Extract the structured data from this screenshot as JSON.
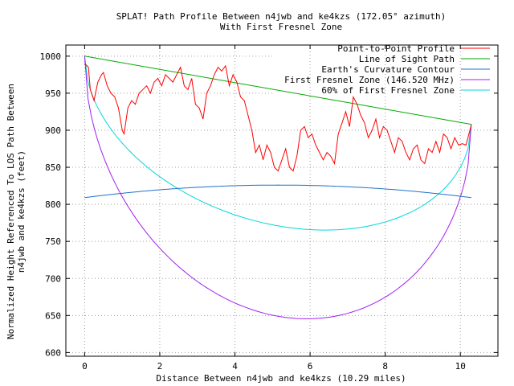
{
  "chart_data": {
    "type": "line",
    "title": "SPLAT! Path Profile Between n4jwb and ke4kzs (172.05° azimuth)",
    "subtitle": "With First Fresnel Zone",
    "xlabel": "Distance Between n4jwb and ke4kzs (10.29 miles)",
    "ylabel_line1": "Normalized Height Referenced To LOS Path Between",
    "ylabel_line2": "n4jwb and ke4kzs (feet)",
    "xlim": [
      -0.5,
      11
    ],
    "ylim": [
      595,
      1015
    ],
    "xticks": [
      0,
      2,
      4,
      6,
      8,
      10
    ],
    "yticks": [
      600,
      650,
      700,
      750,
      800,
      850,
      900,
      950,
      1000
    ],
    "grid": true,
    "legend_position": "top-right",
    "path_length_miles": 10.29,
    "series": [
      {
        "name": "Point-to-Point Profile",
        "color": "#ff0000",
        "x": [
          0.0,
          0.1,
          0.15,
          0.25,
          0.35,
          0.45,
          0.5,
          0.6,
          0.7,
          0.8,
          0.9,
          1.0,
          1.05,
          1.15,
          1.25,
          1.35,
          1.45,
          1.55,
          1.65,
          1.75,
          1.85,
          1.95,
          2.05,
          2.15,
          2.25,
          2.35,
          2.45,
          2.55,
          2.65,
          2.75,
          2.85,
          2.95,
          3.05,
          3.15,
          3.25,
          3.35,
          3.45,
          3.55,
          3.65,
          3.75,
          3.85,
          3.95,
          4.05,
          4.15,
          4.25,
          4.35,
          4.45,
          4.55,
          4.65,
          4.75,
          4.85,
          4.95,
          5.05,
          5.15,
          5.25,
          5.35,
          5.45,
          5.55,
          5.65,
          5.75,
          5.85,
          5.95,
          6.05,
          6.15,
          6.25,
          6.35,
          6.45,
          6.55,
          6.65,
          6.75,
          6.85,
          6.95,
          7.05,
          7.15,
          7.25,
          7.35,
          7.45,
          7.55,
          7.65,
          7.75,
          7.85,
          7.95,
          8.05,
          8.15,
          8.25,
          8.35,
          8.45,
          8.55,
          8.65,
          8.75,
          8.85,
          8.95,
          9.05,
          9.15,
          9.25,
          9.35,
          9.45,
          9.55,
          9.65,
          9.75,
          9.85,
          9.95,
          10.05,
          10.15,
          10.29
        ],
        "y": [
          990,
          985,
          955,
          940,
          965,
          975,
          978,
          960,
          950,
          945,
          930,
          900,
          895,
          930,
          940,
          935,
          950,
          955,
          960,
          950,
          965,
          970,
          960,
          975,
          970,
          965,
          975,
          985,
          960,
          955,
          970,
          935,
          930,
          915,
          950,
          960,
          975,
          985,
          980,
          987,
          960,
          975,
          965,
          945,
          940,
          920,
          900,
          870,
          880,
          860,
          880,
          870,
          850,
          845,
          860,
          875,
          850,
          845,
          865,
          900,
          905,
          890,
          895,
          880,
          870,
          860,
          870,
          865,
          855,
          895,
          910,
          925,
          905,
          945,
          935,
          920,
          910,
          890,
          900,
          915,
          890,
          905,
          900,
          885,
          870,
          890,
          885,
          870,
          860,
          875,
          880,
          860,
          855,
          875,
          870,
          885,
          870,
          895,
          890,
          875,
          890,
          880,
          882,
          880,
          907
        ]
      },
      {
        "name": "Line of Sight Path",
        "color": "#00aa00",
        "x": [
          0,
          10.29
        ],
        "y": [
          1000,
          908
        ]
      },
      {
        "name": "Earth's Curvature Contour",
        "color": "#1e72c8",
        "formula": "earth",
        "start": 809,
        "end": 809,
        "bulge": 17
      },
      {
        "name": "First Fresnel Zone (146.520 MHz)",
        "color": "#a020f0",
        "formula": "fresnel",
        "radius": 305
      },
      {
        "name": "60% of First Fresnel Zone",
        "color": "#00d8d8",
        "formula": "fresnel",
        "radius": 183
      }
    ]
  }
}
